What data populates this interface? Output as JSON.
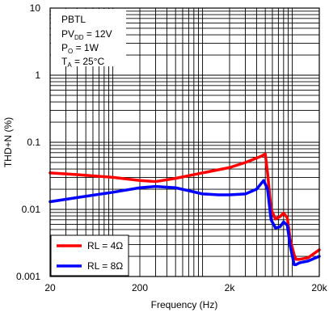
{
  "chart_data": {
    "type": "line",
    "xlabel": "Frequency (Hz)",
    "ylabel": "THD+N (%)",
    "x_scale": "log",
    "y_scale": "log",
    "xlim": [
      20,
      20000
    ],
    "ylim": [
      0.001,
      10
    ],
    "grid": true,
    "x_tick_labels": [
      "20",
      "200",
      "2k",
      "20k"
    ],
    "y_tick_labels": [
      "10",
      "1",
      "0.1",
      "0.01",
      "0.001"
    ],
    "conditions": {
      "line1": "PBTL",
      "line2": {
        "main": "PV",
        "sub": "DD",
        "rest": " = 12V"
      },
      "line3": {
        "main": "P",
        "sub": "O",
        "rest": " = 1W"
      },
      "line4": {
        "main": "T",
        "sub": "A",
        "rest": " = 25°C"
      }
    },
    "legend_placement": "bottom-left",
    "series": [
      {
        "name": "RL = 4Ω",
        "color": "#ff0000",
        "x": [
          20,
          40,
          100,
          200,
          300,
          500,
          1000,
          2000,
          3000,
          4500,
          5000,
          5300,
          5800,
          6500,
          7300,
          8000,
          8800,
          9500,
          10500,
          11000,
          12000,
          15000,
          20000
        ],
        "y": [
          0.035,
          0.033,
          0.03,
          0.027,
          0.026,
          0.029,
          0.035,
          0.042,
          0.05,
          0.062,
          0.067,
          0.035,
          0.01,
          0.0072,
          0.0078,
          0.0088,
          0.0075,
          0.0035,
          0.0021,
          0.0018,
          0.0018,
          0.0019,
          0.0025
        ]
      },
      {
        "name": "RL = 8Ω",
        "color": "#0000ff",
        "x": [
          20,
          40,
          100,
          200,
          300,
          500,
          700,
          1000,
          1500,
          2000,
          3000,
          4000,
          4800,
          5300,
          5800,
          6500,
          7300,
          8000,
          8800,
          9500,
          10500,
          11000,
          12000,
          15000,
          20000
        ],
        "y": [
          0.013,
          0.015,
          0.018,
          0.021,
          0.022,
          0.021,
          0.019,
          0.017,
          0.0165,
          0.0165,
          0.017,
          0.02,
          0.027,
          0.02,
          0.007,
          0.0053,
          0.0055,
          0.0065,
          0.0058,
          0.0028,
          0.0015,
          0.0015,
          0.0016,
          0.0017,
          0.002
        ]
      }
    ]
  }
}
